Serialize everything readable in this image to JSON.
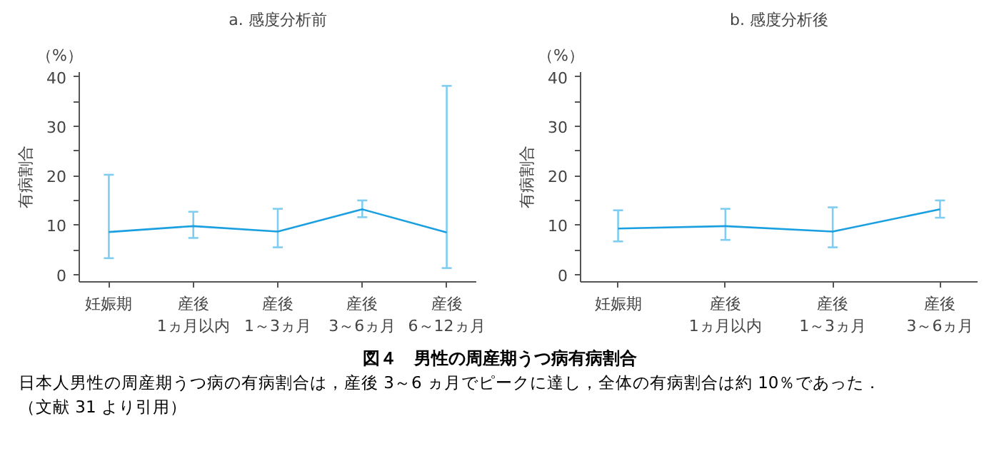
{
  "chart_data": [
    {
      "type": "line",
      "title": "a. 感度分析前",
      "ylabel": "有病割合",
      "annotations": [
        "（%）"
      ],
      "categories": [
        "妊娠期",
        "産後\n1ヵ月以内",
        "産後\n1～3ヵ月",
        "産後\n3～6ヵ月",
        "産後\n6～12ヵ月"
      ],
      "series": [
        {
          "color": "#1a9fe0",
          "values": [
            8.6,
            9.8,
            8.7,
            13.2,
            8.5
          ],
          "errors": [
            [
              3.3,
              20.2
            ],
            [
              7.4,
              12.7
            ],
            [
              5.5,
              13.3
            ],
            [
              11.6,
              15.0
            ],
            [
              1.3,
              38.2
            ]
          ]
        }
      ],
      "ylim": [
        -1.5,
        41
      ],
      "yticks": [
        0,
        {
          "value": 5,
          "label": null
        },
        10,
        {
          "value": 15,
          "label": null
        },
        20,
        {
          "value": 25,
          "label": null
        },
        30,
        {
          "value": 35,
          "label": null
        },
        40
      ],
      "grid": false,
      "marker": "none",
      "line_style": "solid"
    },
    {
      "type": "line",
      "title": "b. 感度分析後",
      "ylabel": "有病割合",
      "annotations": [
        "（%）"
      ],
      "categories": [
        "妊娠期",
        "産後\n1ヵ月以内",
        "産後\n1～3ヵ月",
        "産後\n3～6ヵ月"
      ],
      "series": [
        {
          "color": "#1a9fe0",
          "values": [
            9.3,
            9.8,
            8.7,
            13.2
          ],
          "errors": [
            [
              6.7,
              13.0
            ],
            [
              7.0,
              13.3
            ],
            [
              5.5,
              13.6
            ],
            [
              11.5,
              15.0
            ]
          ]
        }
      ],
      "ylim": [
        -1.5,
        41
      ],
      "yticks": [
        0,
        {
          "value": 5,
          "label": null
        },
        10,
        {
          "value": 15,
          "label": null
        },
        20,
        {
          "value": 25,
          "label": null
        },
        30,
        {
          "value": 35,
          "label": null
        },
        40
      ],
      "grid": false,
      "marker": "none",
      "line_style": "solid"
    },
    {
      "type": "other",
      "title": "図４　男性の周産期うつ病有病割合",
      "annotations": [
        "日本人男性の周産期うつ病の有病割合は，産後 3～6 ヵ月でピークに達し，全体の有病割合は約 10％であった．",
        "（文献 31 より引用）"
      ]
    }
  ]
}
